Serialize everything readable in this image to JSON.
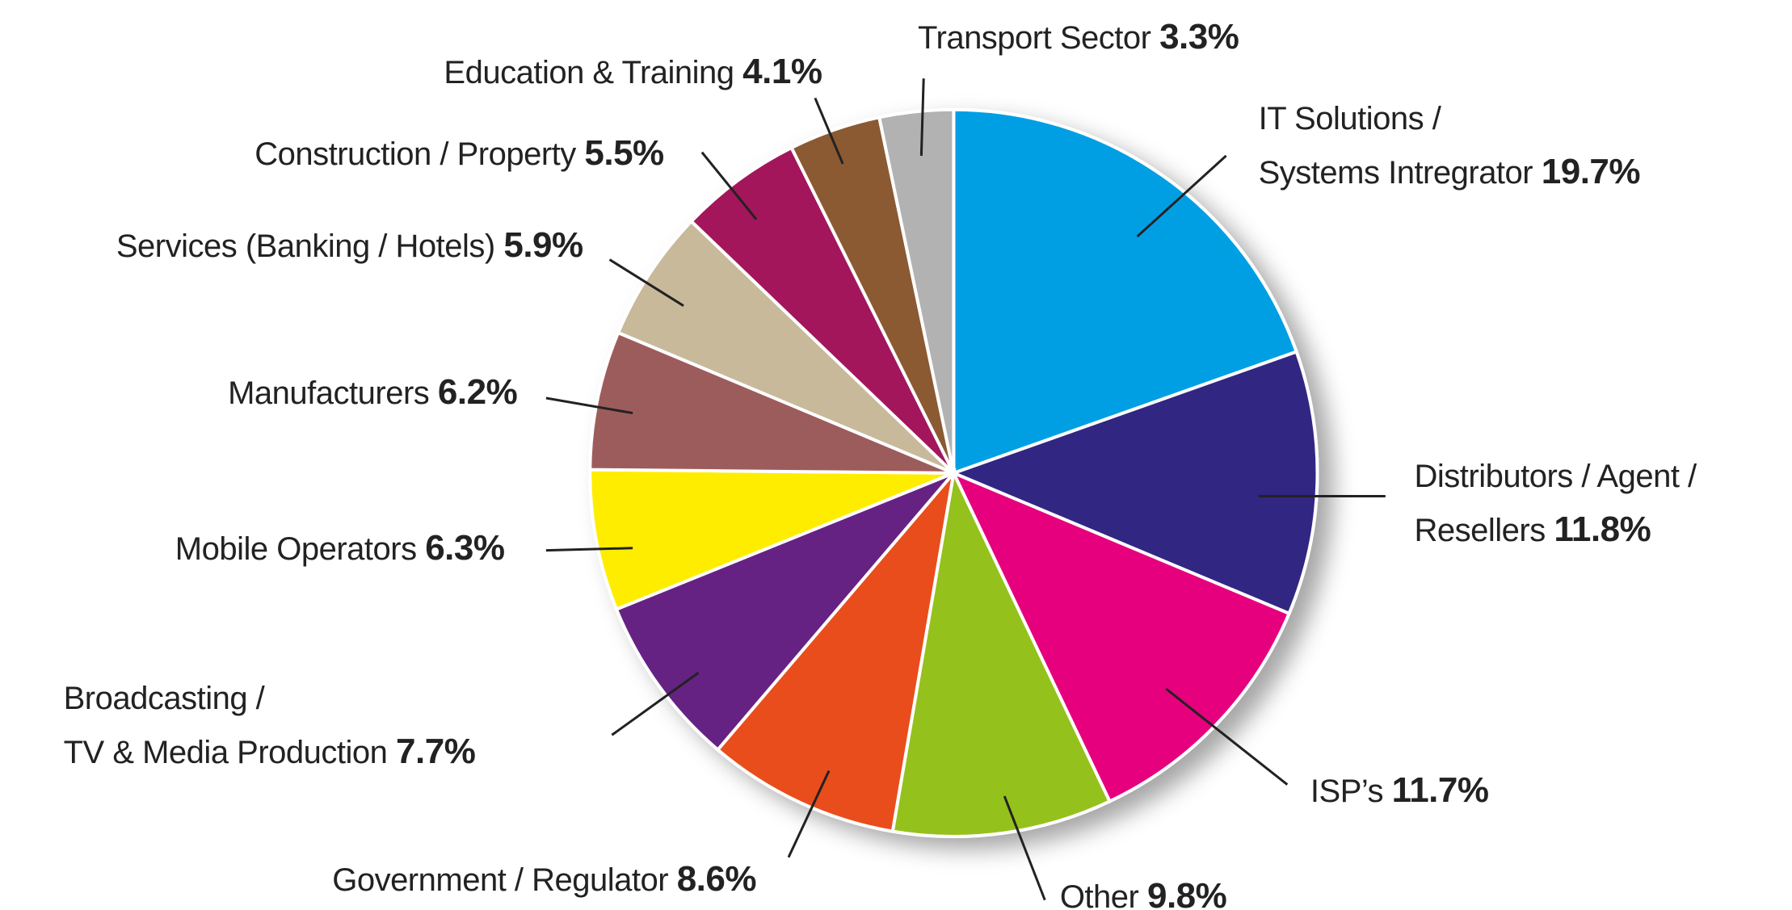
{
  "chart_data": {
    "type": "pie",
    "categories": [
      "IT Solutions /\nSystems Intregrator",
      "Distributors / Agent /\nResellers",
      "ISP’s",
      "Other",
      "Government / Regulator",
      "Broadcasting /\nTV & Media Production",
      "Mobile Operators",
      "Manufacturers",
      "Services (Banking / Hotels)",
      "Construction / Property",
      "Education & Training",
      "Transport Sector"
    ],
    "values": [
      19.7,
      11.8,
      11.7,
      9.8,
      8.6,
      7.7,
      6.3,
      6.2,
      5.9,
      5.5,
      4.1,
      3.3
    ],
    "value_labels": [
      "19.7%",
      "11.8%",
      "11.7%",
      "9.8%",
      "8.6%",
      "7.7%",
      "6.3%",
      "6.2%",
      "5.9%",
      "5.5%",
      "4.1%",
      "3.3%"
    ],
    "colors": [
      "#009fe3",
      "#312783",
      "#e6007e",
      "#95c11f",
      "#e94e1b",
      "#662483",
      "#ffed00",
      "#9d5c5c",
      "#c9b99b",
      "#a3195b",
      "#8b5a32",
      "#b2b2b2"
    ]
  }
}
